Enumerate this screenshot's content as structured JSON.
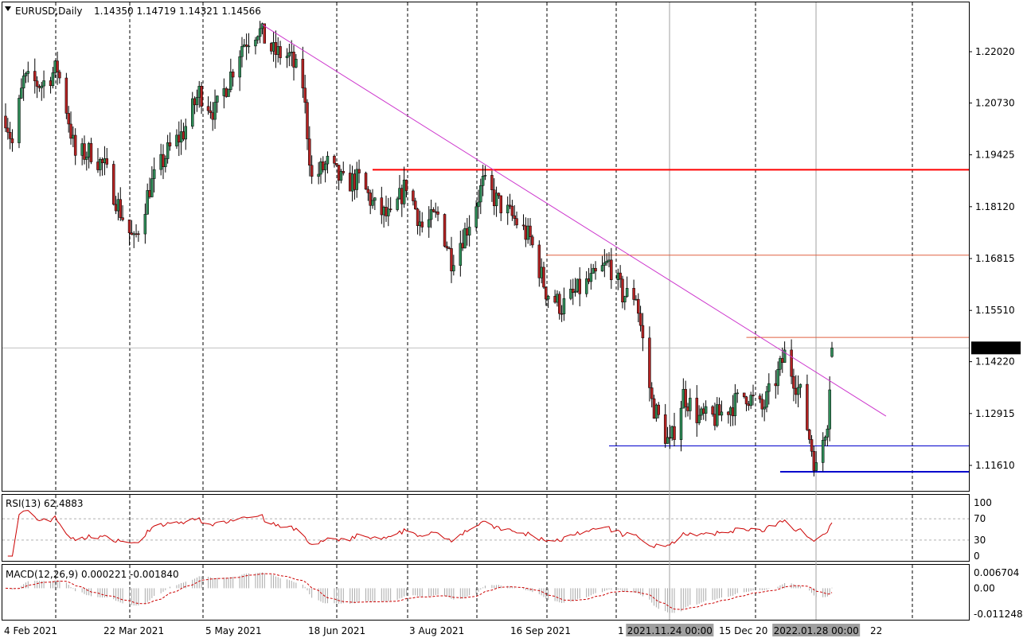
{
  "header": {
    "symbol": "EURUSD,Daily",
    "ohlc": "1.14350 1.14719 1.14321 1.14566"
  },
  "price_axis": {
    "ticks": [
      "1.22020",
      "1.20730",
      "1.19425",
      "1.18120",
      "1.16815",
      "1.15510",
      "1.14220",
      "1.12915",
      "1.11610"
    ],
    "current": "1.14566"
  },
  "time_axis": {
    "labels": [
      "4 Feb 2021",
      "22 Mar 2021",
      "5 May 2021",
      "18 Jun 2021",
      "3 Aug 2021",
      "16 Sep 2021",
      "1",
      "15 Dec 20",
      "22"
    ],
    "crosshair_1": "2021.11.24 00:00",
    "crosshair_2": "2022.01.28 00:00"
  },
  "rsi": {
    "label": "RSI(13) 62.4883",
    "ticks": [
      "100",
      "70",
      "30",
      "0"
    ]
  },
  "macd": {
    "label": "MACD(12,26,9) 0.000221 -0.001840",
    "ticks": [
      "0.006704",
      "0.00",
      "-0.011248"
    ]
  },
  "colors": {
    "bull": "#2e8b57",
    "bear": "#b22222",
    "trendline": "#cc33cc",
    "res_major": "#ff0000",
    "res_minor": "#e06040",
    "support": "#0000cc",
    "rsi": "#cc0000",
    "macd_signal": "#cc0000",
    "macd_hist": "#a9a9a9"
  },
  "chart_data": {
    "type": "candlestick",
    "timeframe": "Daily",
    "symbol": "EURUSD",
    "ylim": [
      1.11,
      1.231
    ],
    "price_path": [
      [
        "2021-02-02",
        1.204
      ],
      [
        "2021-02-05",
        1.197
      ],
      [
        "2021-02-10",
        1.213
      ],
      [
        "2021-02-18",
        1.212
      ],
      [
        "2021-02-25",
        1.216
      ],
      [
        "2021-03-01",
        1.206
      ],
      [
        "2021-03-05",
        1.194
      ],
      [
        "2021-03-12",
        1.195
      ],
      [
        "2021-03-18",
        1.191
      ],
      [
        "2021-03-25",
        1.18
      ],
      [
        "2021-03-31",
        1.172
      ],
      [
        "2021-04-07",
        1.186
      ],
      [
        "2021-04-15",
        1.195
      ],
      [
        "2021-04-22",
        1.2
      ],
      [
        "2021-04-29",
        1.21
      ],
      [
        "2021-05-06",
        1.205
      ],
      [
        "2021-05-12",
        1.213
      ],
      [
        "2021-05-18",
        1.222
      ],
      [
        "2021-05-25",
        1.226
      ],
      [
        "2021-06-01",
        1.22
      ],
      [
        "2021-06-08",
        1.219
      ],
      [
        "2021-06-14",
        1.212
      ],
      [
        "2021-06-18",
        1.188
      ],
      [
        "2021-06-25",
        1.192
      ],
      [
        "2021-07-02",
        1.187
      ],
      [
        "2021-07-09",
        1.188
      ],
      [
        "2021-07-16",
        1.181
      ],
      [
        "2021-07-23",
        1.178
      ],
      [
        "2021-07-30",
        1.187
      ],
      [
        "2021-08-06",
        1.176
      ],
      [
        "2021-08-13",
        1.179
      ],
      [
        "2021-08-19",
        1.168
      ],
      [
        "2021-08-26",
        1.176
      ],
      [
        "2021-09-02",
        1.187
      ],
      [
        "2021-09-09",
        1.182
      ],
      [
        "2021-09-16",
        1.178
      ],
      [
        "2021-09-23",
        1.173
      ],
      [
        "2021-09-30",
        1.16
      ],
      [
        "2021-10-07",
        1.156
      ],
      [
        "2021-10-14",
        1.16
      ],
      [
        "2021-10-21",
        1.163
      ],
      [
        "2021-10-28",
        1.167
      ],
      [
        "2021-11-03",
        1.159
      ],
      [
        "2021-11-09",
        1.159
      ],
      [
        "2021-11-16",
        1.132
      ],
      [
        "2021-11-24",
        1.121
      ],
      [
        "2021-11-30",
        1.134
      ],
      [
        "2021-12-07",
        1.128
      ],
      [
        "2021-12-14",
        1.128
      ],
      [
        "2021-12-21",
        1.131
      ],
      [
        "2021-12-28",
        1.134
      ],
      [
        "2022-01-04",
        1.13
      ],
      [
        "2022-01-11",
        1.139
      ],
      [
        "2022-01-14",
        1.144
      ],
      [
        "2022-01-21",
        1.134
      ],
      [
        "2022-01-28",
        1.115
      ],
      [
        "2022-02-02",
        1.128
      ],
      [
        "2022-02-04",
        1.146
      ]
    ],
    "last": {
      "open": 1.1435,
      "high": 1.14719,
      "low": 1.14321,
      "close": 1.14566
    },
    "horizontal_levels": [
      {
        "type": "resistance",
        "price": 1.1905,
        "from": "2021-07-15"
      },
      {
        "type": "resistance",
        "price": 1.169,
        "from": "2021-09-30"
      },
      {
        "type": "resistance",
        "price": 1.1483,
        "from": "2021-12-28"
      },
      {
        "type": "support",
        "price": 1.121,
        "from": "2021-10-28"
      },
      {
        "type": "support",
        "price": 1.1145,
        "from": "2022-01-12"
      }
    ],
    "trendline": {
      "from": [
        "2021-05-27",
        1.227
      ],
      "to": [
        "2022-02-28",
        1.1285
      ]
    },
    "vertical_lines": [
      "2021-11-24",
      "2022-01-28"
    ],
    "indicators": {
      "rsi": {
        "period": 13,
        "value": 62.4883,
        "levels": [
          70,
          30
        ]
      },
      "macd": {
        "fast": 12,
        "slow": 26,
        "signal": 9,
        "main": 0.000221,
        "signal_value": -0.00184,
        "ylim": [
          -0.011248,
          0.006704
        ]
      }
    }
  }
}
